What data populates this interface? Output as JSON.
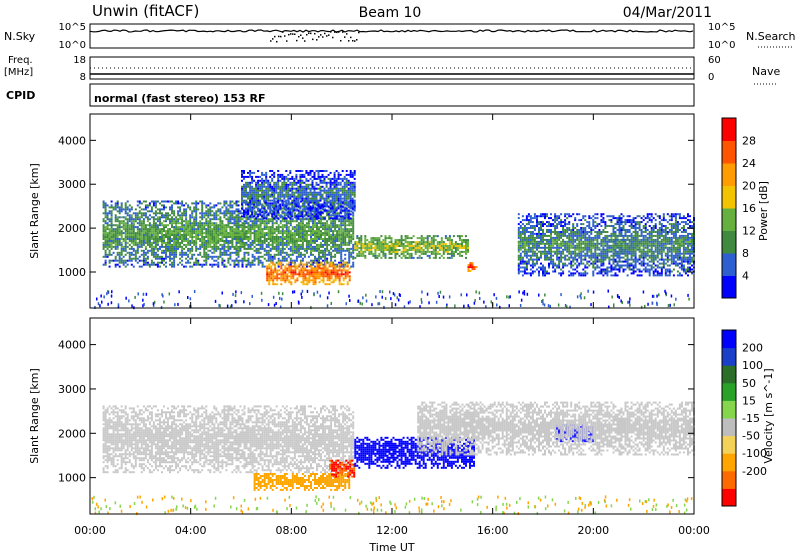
{
  "header": {
    "station": "Unwin (fitACF)",
    "beam": "Beam 10",
    "date": "04/Mar/2011"
  },
  "noise_panel": {
    "left_label": "N.Sky",
    "left_ticks": [
      "10^5",
      "10^0"
    ],
    "right_ticks": [
      "10^5",
      "10^0"
    ],
    "right_label": "N.Search"
  },
  "freq_panel": {
    "left_label_1": "Freq.",
    "left_label_2": "[MHz]",
    "left_ticks": [
      "18",
      "8"
    ],
    "right_ticks": [
      "60",
      "0"
    ],
    "right_label": "Nave"
  },
  "cpid_panel": {
    "label": "CPID",
    "program": "normal (fast stereo) 153 RF"
  },
  "colors": {
    "power": [
      "#0000ff",
      "#2e5fd0",
      "#3f8a3f",
      "#66b040",
      "#f2c300",
      "#ff9c00",
      "#ff5500",
      "#ff0000"
    ],
    "velocity": [
      "#ff0000",
      "#ff6a00",
      "#ffa500",
      "#f4d25a",
      "#bdbdbd",
      "#86d64d",
      "#2aa22a",
      "#2a6e2a",
      "#1a3fc8",
      "#0000ff"
    ],
    "ground_scatter": "#c8c8c8"
  },
  "chart_data": [
    {
      "type": "heatmap",
      "name": "power",
      "xlabel": "Time UT",
      "ylabel": "Slant Range [km]",
      "xlim": [
        0,
        24
      ],
      "ylim": [
        180,
        4600
      ],
      "x_ticks": [
        "00:00",
        "04:00",
        "08:00",
        "12:00",
        "16:00",
        "20:00",
        "00:00"
      ],
      "y_ticks": [
        "1000",
        "2000",
        "3000",
        "4000"
      ],
      "colorbar": {
        "label": "Power [dB]",
        "range": [
          0,
          32
        ],
        "ticks": [
          "4",
          "8",
          "12",
          "16",
          "20",
          "24",
          "28"
        ]
      },
      "features": [
        {
          "t_start": 0.5,
          "t_end": 10.5,
          "range_start": 1100,
          "range_end": 2600,
          "power": 12
        },
        {
          "t_start": 6.0,
          "t_end": 10.5,
          "range_start": 2200,
          "range_end": 3300,
          "power": 8
        },
        {
          "t_start": 7.0,
          "t_end": 10.3,
          "range_start": 700,
          "range_end": 1200,
          "power": 26
        },
        {
          "t_start": 10.5,
          "t_end": 15.0,
          "range_start": 1300,
          "range_end": 1800,
          "power": 16
        },
        {
          "t_start": 15.0,
          "t_end": 15.4,
          "range_start": 1000,
          "range_end": 1200,
          "power": 28
        },
        {
          "t_start": 17.0,
          "t_end": 24.0,
          "range_start": 900,
          "range_end": 2300,
          "power": 10
        }
      ]
    },
    {
      "type": "heatmap",
      "name": "velocity",
      "xlabel": "Time UT",
      "ylabel": "Slant Range [km]",
      "xlim": [
        0,
        24
      ],
      "ylim": [
        180,
        4600
      ],
      "x_ticks": [
        "00:00",
        "04:00",
        "08:00",
        "12:00",
        "16:00",
        "20:00",
        "00:00"
      ],
      "y_ticks": [
        "1000",
        "2000",
        "3000",
        "4000"
      ],
      "colorbar": {
        "label": "Velocity [m s^-1]",
        "ticks": [
          "200",
          "100",
          "50",
          "15",
          "-15",
          "-50",
          "-100",
          "-200"
        ]
      },
      "features": [
        {
          "t_start": 0.5,
          "t_end": 10.5,
          "range_start": 1100,
          "range_end": 2600,
          "velocity": 0
        },
        {
          "t_start": 6.5,
          "t_end": 10.3,
          "range_start": 700,
          "range_end": 1100,
          "velocity": -80
        },
        {
          "t_start": 9.5,
          "t_end": 10.5,
          "range_start": 1000,
          "range_end": 1400,
          "velocity": -200
        },
        {
          "t_start": 10.5,
          "t_end": 15.3,
          "range_start": 1200,
          "range_end": 1900,
          "velocity": 220
        },
        {
          "t_start": 18.5,
          "t_end": 20.0,
          "range_start": 1800,
          "range_end": 2200,
          "velocity": 220
        },
        {
          "t_start": 13.0,
          "t_end": 24.0,
          "range_start": 1500,
          "range_end": 2700,
          "velocity": 0
        }
      ]
    }
  ]
}
